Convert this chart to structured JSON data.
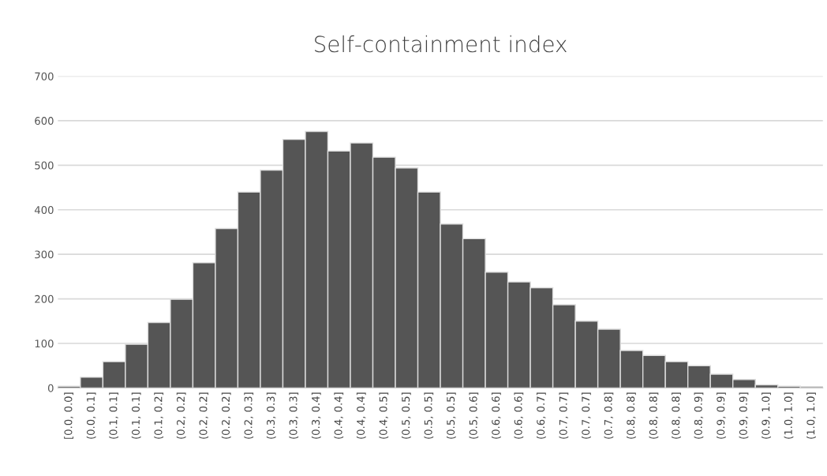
{
  "chart_data": {
    "type": "bar",
    "title": "Self-containment index",
    "categories": [
      "[0.0, 0.0]",
      "(0.0, 0.1]",
      "(0.1, 0.1]",
      "(0.1, 0.1]",
      "(0.1, 0.2]",
      "(0.2, 0.2]",
      "(0.2, 0.2]",
      "(0.2, 0.2]",
      "(0.2, 0.3]",
      "(0.3, 0.3]",
      "(0.3, 0.3]",
      "(0.3, 0.4]",
      "(0.4, 0.4]",
      "(0.4, 0.4]",
      "(0.4, 0.5]",
      "(0.5, 0.5]",
      "(0.5, 0.5]",
      "(0.5, 0.5]",
      "(0.5, 0.6]",
      "(0.6, 0.6]",
      "(0.6, 0.6]",
      "(0.6, 0.7]",
      "(0.7, 0.7]",
      "(0.7, 0.7]",
      "(0.7, 0.8]",
      "(0.8, 0.8]",
      "(0.8, 0.8]",
      "(0.8, 0.8]",
      "(0.8, 0.9]",
      "(0.9, 0.9]",
      "(0.9, 0.9]",
      "(0.9, 1.0]",
      "(1.0, 1.0]",
      "(1.0, 1.0]"
    ],
    "values": [
      4,
      24,
      59,
      98,
      147,
      199,
      281,
      358,
      440,
      489,
      558,
      576,
      532,
      550,
      518,
      494,
      440,
      368,
      335,
      260,
      238,
      225,
      187,
      150,
      132,
      84,
      73,
      59,
      50,
      31,
      19,
      7,
      4,
      3
    ],
    "color": "#555555",
    "ylim": [
      0,
      700
    ],
    "yticks": [
      0,
      100,
      200,
      300,
      400,
      500,
      600,
      700
    ],
    "grid": "y"
  }
}
